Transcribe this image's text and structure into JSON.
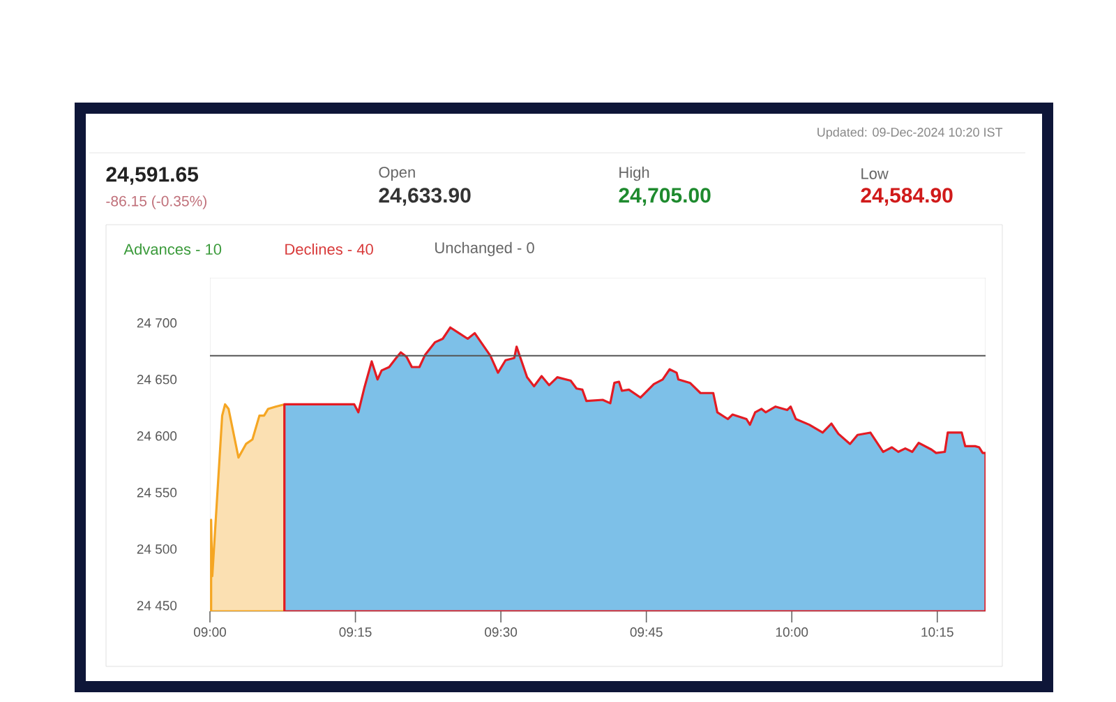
{
  "chart_data": {
    "type": "area",
    "annotations": [
      "Updated: 09-Dec-2024 10:20 IST",
      "24,591.65",
      "-86.15 (-0.35%)",
      "Open",
      "24,633.90",
      "High",
      "24,705.00",
      "Low",
      "24,584.90",
      "Advances - 10",
      "Declines - 40",
      "Unchanged - 0"
    ],
    "series": [
      {
        "color": "#fbe0b2",
        "x": [
          9.002,
          9.004,
          9.021,
          9.026,
          9.032,
          9.049,
          9.062,
          9.073,
          9.085,
          9.093,
          9.1,
          9.113,
          9.128
        ],
        "values": [
          24526,
          24476,
          24618,
          24628,
          24624,
          24581,
          24593,
          24597,
          24618,
          24618,
          24624,
          24626,
          24628
        ]
      },
      {
        "color": "#7dc0e8",
        "x": [
          9.128,
          9.248,
          9.255,
          9.265,
          9.278,
          9.288,
          9.295,
          9.308,
          9.32,
          9.328,
          9.338,
          9.347,
          9.36,
          9.37,
          9.387,
          9.4,
          9.413,
          9.428,
          9.443,
          9.455,
          9.482,
          9.495,
          9.508,
          9.523,
          9.527,
          9.545,
          9.557,
          9.57,
          9.583,
          9.597,
          9.62,
          9.63,
          9.64,
          9.647,
          9.675,
          9.688,
          9.695,
          9.703,
          9.708,
          9.72,
          9.74,
          9.763,
          9.778,
          9.79,
          9.802,
          9.805,
          9.825,
          9.843,
          9.865,
          9.872,
          9.89,
          9.898,
          9.922,
          9.928,
          9.937,
          9.948,
          9.955,
          9.972,
          9.992,
          9.998,
          10.007,
          10.03,
          10.053,
          10.068,
          10.08,
          10.1,
          10.113,
          10.135,
          10.157,
          10.172,
          10.183,
          10.195,
          10.207,
          10.218,
          10.24,
          10.248,
          10.263,
          10.268,
          10.292,
          10.298,
          10.315,
          10.322,
          10.328,
          10.333
        ],
        "values": [
          24628,
          24628,
          24621,
          24642,
          24666,
          24650,
          24658,
          24661,
          24669,
          24674,
          24670,
          24661,
          24661,
          24672,
          24683,
          24686,
          24696,
          24691,
          24686,
          24691,
          24671,
          24656,
          24667,
          24669,
          24679,
          24652,
          24644,
          24653,
          24645,
          24652,
          24649,
          24642,
          24641,
          24631,
          24632,
          24629,
          24647,
          24648,
          24640,
          24641,
          24634,
          24646,
          24650,
          24659,
          24656,
          24650,
          24647,
          24638,
          24638,
          24621,
          24615,
          24619,
          24615,
          24610,
          24621,
          24624,
          24621,
          24626,
          24623,
          24626,
          24615,
          24610,
          24603,
          24611,
          24602,
          24593,
          24601,
          24603,
          24586,
          24590,
          24586,
          24589,
          24586,
          24594,
          24588,
          24585,
          24586,
          24603,
          24603,
          24591,
          24591,
          24590,
          24585,
          24585
        ]
      }
    ],
    "xlim": [
      9,
      10.333
    ],
    "xticks": [
      {
        "value": 9,
        "label": "09:00"
      },
      {
        "value": 9.25,
        "label": "09:15"
      },
      {
        "value": 9.5,
        "label": "09:30"
      },
      {
        "value": 9.75,
        "label": "09:45"
      },
      {
        "value": 10,
        "label": "10:00"
      },
      {
        "value": 10.25,
        "label": "10:15"
      }
    ],
    "ylim": [
      24445,
      24740
    ],
    "yticks": [
      {
        "value": 24450,
        "label": "24 450"
      },
      {
        "value": 24500,
        "label": "24 500"
      },
      {
        "value": 24550,
        "label": "24 550"
      },
      {
        "value": 24600,
        "label": "24 600"
      },
      {
        "value": 24650,
        "label": "24 650"
      },
      {
        "value": 24700,
        "label": "24 700"
      }
    ],
    "ref_lines": [
      {
        "axis": "y",
        "value": 24671,
        "color": "#555555"
      }
    ],
    "grid": false,
    "marker": "none"
  }
}
